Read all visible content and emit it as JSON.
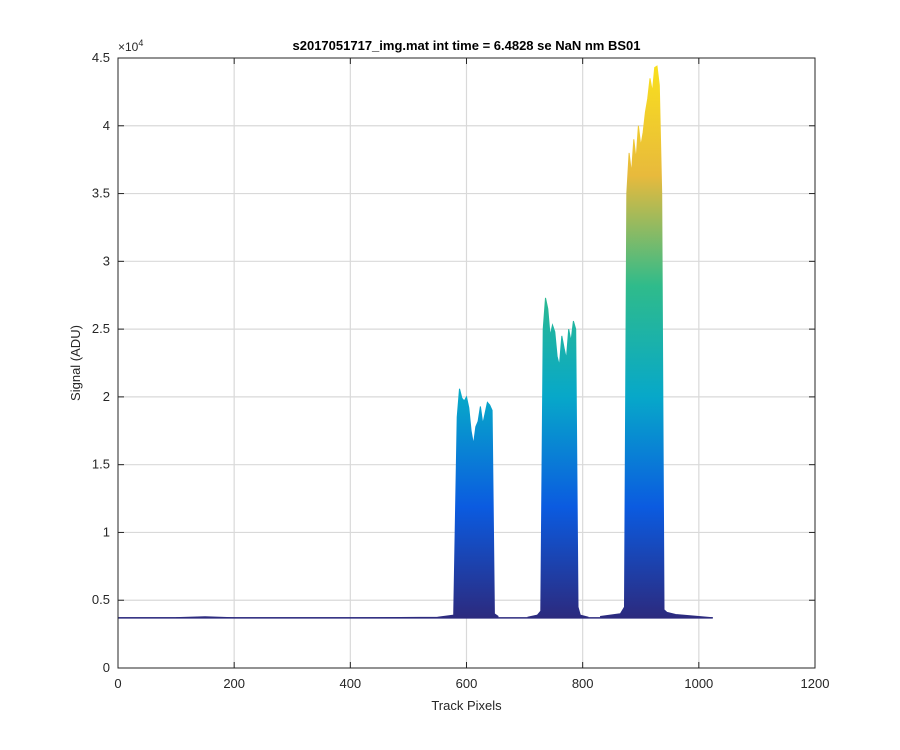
{
  "chart_data": {
    "type": "area",
    "title": "s2017051717_img.mat int time = 6.4828 se  NaN nm BS01",
    "xlabel": "Track Pixels",
    "ylabel": "Signal (ADU)",
    "xlim": [
      0,
      1200
    ],
    "ylim": [
      0,
      45000
    ],
    "x_ticks": [
      "0",
      "200",
      "400",
      "600",
      "800",
      "1000",
      "1200"
    ],
    "y_ticks": [
      "0",
      "0.5",
      "1",
      "1.5",
      "2",
      "2.5",
      "3",
      "3.5",
      "4",
      "4.5"
    ],
    "y_exponent_base": "×10",
    "y_exponent_power": "4",
    "grid": true,
    "colormap": [
      "#2c2a7e",
      "#0b5be0",
      "#07a8c9",
      "#2fbb8b",
      "#e8ba3c",
      "#f9e01d"
    ],
    "baseline": 3700,
    "x_max_data": 1024,
    "series": [
      {
        "x": [
          0,
          100,
          150,
          200,
          400,
          550,
          578,
          584,
          588,
          592,
          596,
          600,
          604,
          608,
          612,
          616,
          620,
          624,
          628,
          632,
          636,
          640,
          644,
          648,
          655
        ],
        "y": [
          3700,
          3720,
          3780,
          3700,
          3700,
          3750,
          3900,
          18500,
          20600,
          19900,
          19700,
          20000,
          19200,
          17500,
          16500,
          17800,
          18200,
          19300,
          18000,
          18800,
          19600,
          19400,
          19000,
          4000,
          3800
        ]
      },
      {
        "x": [
          705,
          722,
          728,
          732,
          736,
          740,
          744,
          748,
          752,
          756,
          760,
          764,
          768,
          772,
          776,
          780,
          784,
          788,
          792,
          796,
          810
        ],
        "y": [
          3750,
          3900,
          4200,
          25000,
          27300,
          26500,
          24500,
          25300,
          24800,
          23000,
          22300,
          24500,
          23600,
          22800,
          25000,
          24100,
          25600,
          25000,
          4500,
          3900,
          3750
        ]
      },
      {
        "x": [
          830,
          865,
          872,
          876,
          880,
          884,
          888,
          892,
          896,
          900,
          904,
          908,
          912,
          916,
          920,
          924,
          928,
          932,
          936,
          940,
          945,
          960,
          1000,
          1024
        ],
        "y": [
          3800,
          4000,
          4500,
          35000,
          38000,
          36500,
          39000,
          37500,
          40000,
          38500,
          39500,
          41000,
          42000,
          43500,
          42500,
          44300,
          44400,
          43000,
          35000,
          4300,
          4100,
          3950,
          3800,
          3700
        ]
      }
    ]
  }
}
